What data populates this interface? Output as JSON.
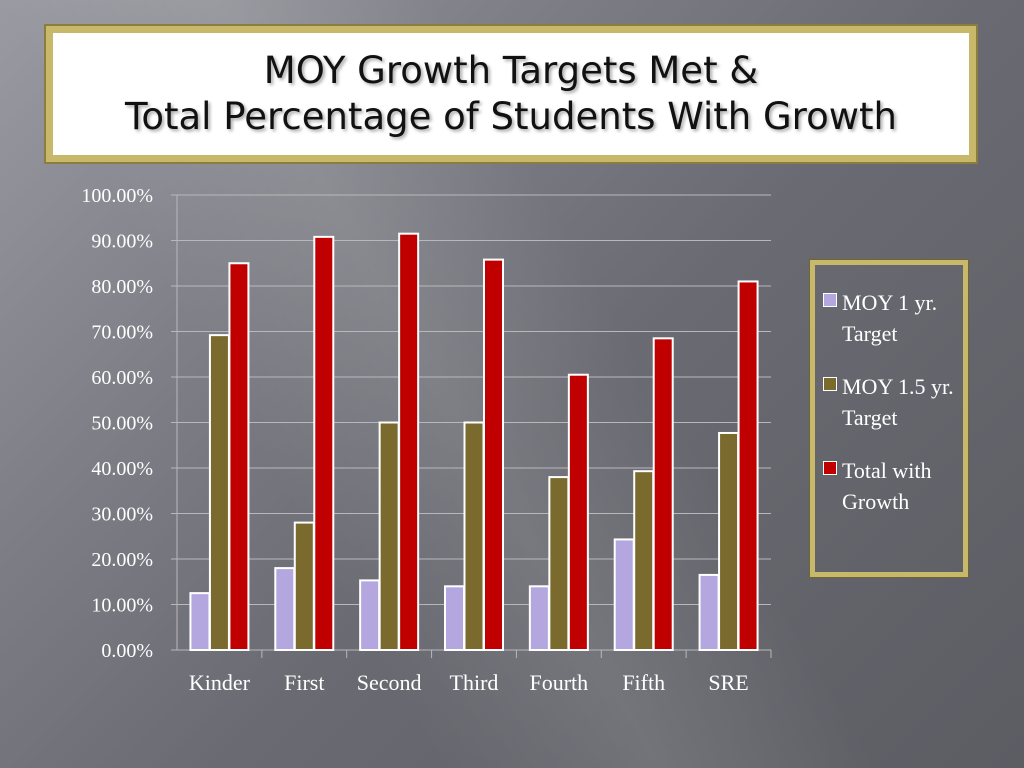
{
  "title": {
    "line1": "MOY Growth Targets Met &",
    "line2": "Total Percentage of Students With Growth"
  },
  "colors": {
    "title_border": "#c8b86a",
    "series": [
      "#b4a7e0",
      "#7a6a2e",
      "#c00000"
    ]
  },
  "chart_data": {
    "type": "bar",
    "categories": [
      "Kinder",
      "First",
      "Second",
      "Third",
      "Fourth",
      "Fifth",
      "SRE"
    ],
    "series": [
      {
        "name": "MOY 1 yr. Target",
        "values": [
          12.5,
          18.0,
          15.3,
          14.0,
          14.0,
          24.3,
          16.5
        ]
      },
      {
        "name": "MOY 1.5 yr. Target",
        "values": [
          69.2,
          28.0,
          50.0,
          50.0,
          38.0,
          39.3,
          47.7
        ]
      },
      {
        "name": "Total with Growth",
        "values": [
          85.0,
          90.8,
          91.5,
          85.8,
          60.5,
          68.5,
          81.0
        ]
      }
    ],
    "yticks": [
      "0.00%",
      "10.00%",
      "20.00%",
      "30.00%",
      "40.00%",
      "50.00%",
      "60.00%",
      "70.00%",
      "80.00%",
      "90.00%",
      "100.00%"
    ],
    "ylim": [
      0,
      100
    ],
    "grid": true,
    "legend_position": "right"
  }
}
